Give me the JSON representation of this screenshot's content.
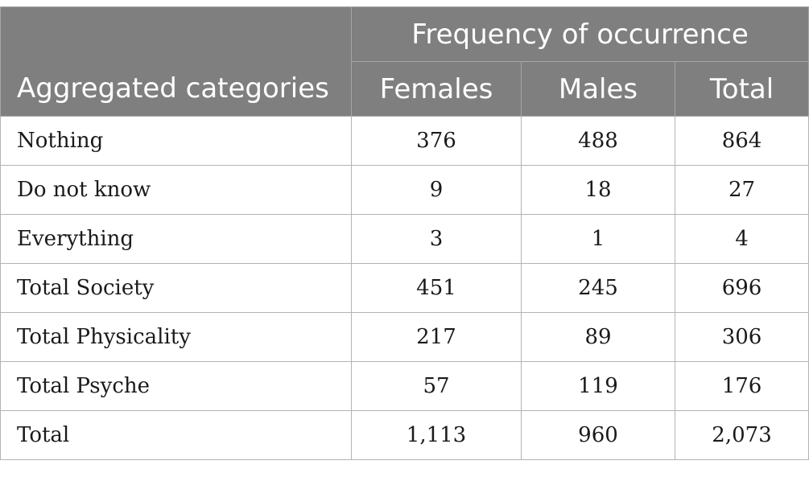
{
  "table": {
    "group_header": "Frequency of occurrence",
    "row_header": "Aggregated categories",
    "columns": [
      "Females",
      "Males",
      "Total"
    ],
    "rows": [
      {
        "label": "Nothing",
        "females": "376",
        "males": "488",
        "total": "864"
      },
      {
        "label": "Do not know",
        "females": "9",
        "males": "18",
        "total": "27"
      },
      {
        "label": "Everything",
        "females": "3",
        "males": "1",
        "total": "4"
      },
      {
        "label": "Total Society",
        "females": "451",
        "males": "245",
        "total": "696"
      },
      {
        "label": "Total Physicality",
        "females": "217",
        "males": "89",
        "total": "306"
      },
      {
        "label": "Total Psyche",
        "females": "57",
        "males": "119",
        "total": "176"
      },
      {
        "label": "Total",
        "females": "1,113",
        "males": "960",
        "total": "2,073"
      }
    ]
  },
  "colors": {
    "header_bg": "#7f7f7f",
    "header_text": "#ffffff",
    "grid": "#b3b3b3"
  }
}
